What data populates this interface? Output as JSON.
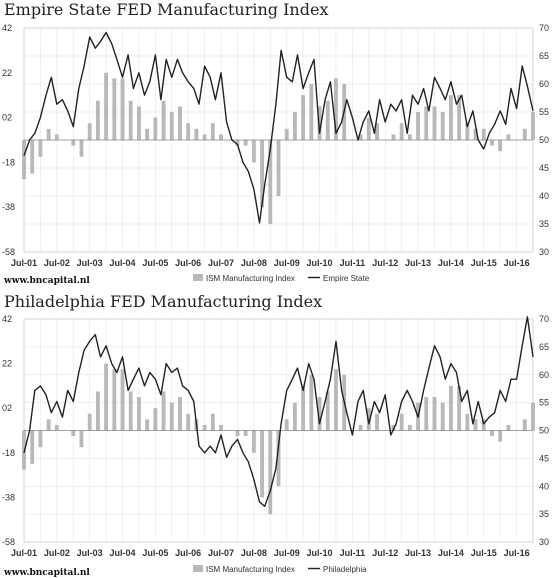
{
  "chart_data": [
    {
      "type": "bar+line",
      "title": "Empire State FED Manufacturing Index",
      "categories": [
        "Jul-01",
        "Jul-02",
        "Jul-03",
        "Jul-04",
        "Jul-05",
        "Jul-06",
        "Jul-07",
        "Jul-08",
        "Jul-09",
        "Jul-10",
        "Jul-11",
        "Jul-12",
        "Jul-13",
        "Jul-14",
        "Jul-15",
        "Jul-16"
      ],
      "y_left_ticks": [
        42,
        22,
        2,
        -18,
        -38,
        -58
      ],
      "y_left_tick_labels": [
        "42",
        "22",
        "02",
        "-18",
        "-38",
        "-58"
      ],
      "y_right_ticks": [
        70,
        65,
        60,
        55,
        50,
        45,
        40,
        35,
        30
      ],
      "y_right_tick_labels": [
        "70",
        "65",
        "60",
        "55",
        "50",
        "45",
        "40",
        "35",
        "30"
      ],
      "ylim_left": [
        -58,
        42
      ],
      "ylim_right": [
        30,
        70
      ],
      "x_start": 2001.5,
      "x_end": 2017.0,
      "legend_position": "bottom",
      "series": [
        {
          "name": "ISM Manufacturing Index",
          "kind": "bar",
          "axis": "right",
          "x": [
            2001.5,
            2001.75,
            2002.0,
            2002.25,
            2002.5,
            2002.75,
            2003.0,
            2003.25,
            2003.5,
            2003.75,
            2004.0,
            2004.25,
            2004.5,
            2004.75,
            2005.0,
            2005.25,
            2005.5,
            2005.75,
            2006.0,
            2006.25,
            2006.5,
            2006.75,
            2007.0,
            2007.25,
            2007.5,
            2007.75,
            2008.0,
            2008.25,
            2008.5,
            2008.75,
            2009.0,
            2009.25,
            2009.5,
            2009.75,
            2010.0,
            2010.25,
            2010.5,
            2010.75,
            2011.0,
            2011.25,
            2011.5,
            2011.75,
            2012.0,
            2012.25,
            2012.5,
            2012.75,
            2013.0,
            2013.25,
            2013.5,
            2013.75,
            2014.0,
            2014.25,
            2014.5,
            2014.75,
            2015.0,
            2015.25,
            2015.5,
            2015.75,
            2016.0,
            2016.25,
            2016.5,
            2016.75,
            2017.0
          ],
          "values": [
            43,
            44,
            47,
            52,
            51,
            50,
            49,
            47,
            53,
            57,
            62,
            61,
            61,
            57,
            56,
            52,
            54,
            57,
            55,
            56,
            53,
            52,
            51,
            53,
            51,
            50,
            49,
            49,
            46,
            38,
            35,
            40,
            52,
            55,
            58,
            60,
            56,
            57,
            61,
            60,
            50,
            51,
            54,
            53,
            50,
            51,
            53,
            51,
            55,
            56,
            56,
            55,
            58,
            58,
            53,
            52,
            52,
            49,
            48,
            51,
            50,
            52,
            55
          ]
        },
        {
          "name": "Empire State",
          "kind": "line",
          "axis": "left",
          "x": [
            2001.5,
            2001.67,
            2001.83,
            2002.0,
            2002.17,
            2002.33,
            2002.5,
            2002.67,
            2002.83,
            2003.0,
            2003.17,
            2003.33,
            2003.5,
            2003.67,
            2003.83,
            2004.0,
            2004.17,
            2004.33,
            2004.5,
            2004.67,
            2004.83,
            2005.0,
            2005.17,
            2005.33,
            2005.5,
            2005.67,
            2005.83,
            2006.0,
            2006.17,
            2006.33,
            2006.5,
            2006.67,
            2006.83,
            2007.0,
            2007.17,
            2007.33,
            2007.5,
            2007.67,
            2007.83,
            2008.0,
            2008.17,
            2008.33,
            2008.5,
            2008.67,
            2008.83,
            2009.0,
            2009.17,
            2009.33,
            2009.5,
            2009.67,
            2009.83,
            2010.0,
            2010.17,
            2010.33,
            2010.5,
            2010.67,
            2010.83,
            2011.0,
            2011.17,
            2011.33,
            2011.5,
            2011.67,
            2011.83,
            2012.0,
            2012.17,
            2012.33,
            2012.5,
            2012.67,
            2012.83,
            2013.0,
            2013.17,
            2013.33,
            2013.5,
            2013.67,
            2013.83,
            2014.0,
            2014.17,
            2014.33,
            2014.5,
            2014.67,
            2014.83,
            2015.0,
            2015.17,
            2015.33,
            2015.5,
            2015.67,
            2015.83,
            2016.0,
            2016.17,
            2016.33,
            2016.5,
            2016.67,
            2016.83,
            2017.0
          ],
          "values": [
            -15,
            -8,
            -5,
            2,
            12,
            20,
            8,
            10,
            5,
            -2,
            15,
            25,
            38,
            33,
            36,
            40,
            35,
            28,
            20,
            30,
            15,
            22,
            12,
            18,
            30,
            10,
            28,
            20,
            28,
            22,
            18,
            15,
            8,
            25,
            20,
            10,
            22,
            0,
            -8,
            -10,
            -18,
            -22,
            -30,
            -45,
            -28,
            -12,
            8,
            32,
            20,
            18,
            30,
            15,
            22,
            28,
            -5,
            10,
            18,
            -5,
            0,
            10,
            2,
            -8,
            0,
            5,
            -5,
            10,
            0,
            8,
            5,
            10,
            -5,
            12,
            8,
            15,
            5,
            20,
            15,
            10,
            18,
            8,
            12,
            -2,
            5,
            -8,
            -12,
            -5,
            -1,
            5,
            -1,
            15,
            6,
            25,
            16,
            5
          ]
        }
      ]
    },
    {
      "type": "bar+line",
      "title": "Philadelphia FED Manufacturing Index",
      "categories": [
        "Jul-01",
        "Jul-02",
        "Jul-03",
        "Jul-04",
        "Jul-05",
        "Jul-06",
        "Jul-07",
        "Jul-08",
        "Jul-09",
        "Jul-10",
        "Jul-11",
        "Jul-12",
        "Jul-13",
        "Jul-14",
        "Jul-15",
        "Jul-16"
      ],
      "y_left_ticks": [
        42,
        22,
        2,
        -18,
        -38,
        -58
      ],
      "y_left_tick_labels": [
        "42",
        "22",
        "02",
        "-18",
        "-38",
        "-58"
      ],
      "y_right_ticks": [
        70,
        65,
        60,
        55,
        50,
        45,
        40,
        35,
        30
      ],
      "y_right_tick_labels": [
        "70",
        "65",
        "60",
        "55",
        "50",
        "45",
        "40",
        "35",
        "30"
      ],
      "ylim_left": [
        -58,
        42
      ],
      "ylim_right": [
        30,
        70
      ],
      "x_start": 2001.5,
      "x_end": 2017.0,
      "legend_position": "bottom",
      "series": [
        {
          "name": "ISM Manufacturing Index",
          "kind": "bar",
          "axis": "right",
          "x": [
            2001.5,
            2001.75,
            2002.0,
            2002.25,
            2002.5,
            2002.75,
            2003.0,
            2003.25,
            2003.5,
            2003.75,
            2004.0,
            2004.25,
            2004.5,
            2004.75,
            2005.0,
            2005.25,
            2005.5,
            2005.75,
            2006.0,
            2006.25,
            2006.5,
            2006.75,
            2007.0,
            2007.25,
            2007.5,
            2007.75,
            2008.0,
            2008.25,
            2008.5,
            2008.75,
            2009.0,
            2009.25,
            2009.5,
            2009.75,
            2010.0,
            2010.25,
            2010.5,
            2010.75,
            2011.0,
            2011.25,
            2011.5,
            2011.75,
            2012.0,
            2012.25,
            2012.5,
            2012.75,
            2013.0,
            2013.25,
            2013.5,
            2013.75,
            2014.0,
            2014.25,
            2014.5,
            2014.75,
            2015.0,
            2015.25,
            2015.5,
            2015.75,
            2016.0,
            2016.25,
            2016.5,
            2016.75,
            2017.0
          ],
          "values": [
            43,
            44,
            47,
            52,
            51,
            50,
            49,
            47,
            53,
            57,
            62,
            61,
            61,
            57,
            56,
            52,
            54,
            57,
            55,
            56,
            53,
            52,
            51,
            53,
            51,
            50,
            49,
            49,
            46,
            38,
            35,
            40,
            52,
            55,
            58,
            60,
            56,
            57,
            61,
            60,
            50,
            51,
            54,
            53,
            50,
            51,
            53,
            51,
            55,
            56,
            56,
            55,
            58,
            58,
            53,
            52,
            52,
            49,
            48,
            51,
            50,
            52,
            55
          ]
        },
        {
          "name": "Philadelphia",
          "kind": "line",
          "axis": "left",
          "x": [
            2001.5,
            2001.67,
            2001.83,
            2002.0,
            2002.17,
            2002.33,
            2002.5,
            2002.67,
            2002.83,
            2003.0,
            2003.17,
            2003.33,
            2003.5,
            2003.67,
            2003.83,
            2004.0,
            2004.17,
            2004.33,
            2004.5,
            2004.67,
            2004.83,
            2005.0,
            2005.17,
            2005.33,
            2005.5,
            2005.67,
            2005.83,
            2006.0,
            2006.17,
            2006.33,
            2006.5,
            2006.67,
            2006.83,
            2007.0,
            2007.17,
            2007.33,
            2007.5,
            2007.67,
            2007.83,
            2008.0,
            2008.17,
            2008.33,
            2008.5,
            2008.67,
            2008.83,
            2009.0,
            2009.17,
            2009.33,
            2009.5,
            2009.67,
            2009.83,
            2010.0,
            2010.17,
            2010.33,
            2010.5,
            2010.67,
            2010.83,
            2011.0,
            2011.17,
            2011.33,
            2011.5,
            2011.67,
            2011.83,
            2012.0,
            2012.17,
            2012.33,
            2012.5,
            2012.67,
            2012.83,
            2013.0,
            2013.17,
            2013.33,
            2013.5,
            2013.67,
            2013.83,
            2014.0,
            2014.17,
            2014.33,
            2014.5,
            2014.67,
            2014.83,
            2015.0,
            2015.17,
            2015.33,
            2015.5,
            2015.67,
            2015.83,
            2016.0,
            2016.17,
            2016.33,
            2016.5,
            2016.67,
            2016.83,
            2017.0
          ],
          "values": [
            -18,
            -8,
            10,
            12,
            8,
            0,
            5,
            -2,
            10,
            5,
            18,
            28,
            32,
            35,
            25,
            30,
            22,
            18,
            25,
            10,
            15,
            20,
            12,
            18,
            15,
            8,
            22,
            18,
            20,
            12,
            10,
            5,
            -15,
            -18,
            -15,
            -18,
            -10,
            -20,
            -15,
            -12,
            -18,
            -22,
            -30,
            -40,
            -42,
            -35,
            -25,
            -5,
            10,
            15,
            20,
            10,
            22,
            15,
            -5,
            5,
            15,
            32,
            10,
            0,
            -10,
            5,
            10,
            -5,
            5,
            0,
            8,
            -10,
            -5,
            5,
            10,
            5,
            -2,
            10,
            20,
            30,
            25,
            15,
            22,
            18,
            5,
            10,
            -5,
            5,
            -5,
            -2,
            0,
            10,
            5,
            15,
            15,
            30,
            43,
            25
          ]
        }
      ]
    }
  ],
  "watermark": "www.bncapital.nl"
}
